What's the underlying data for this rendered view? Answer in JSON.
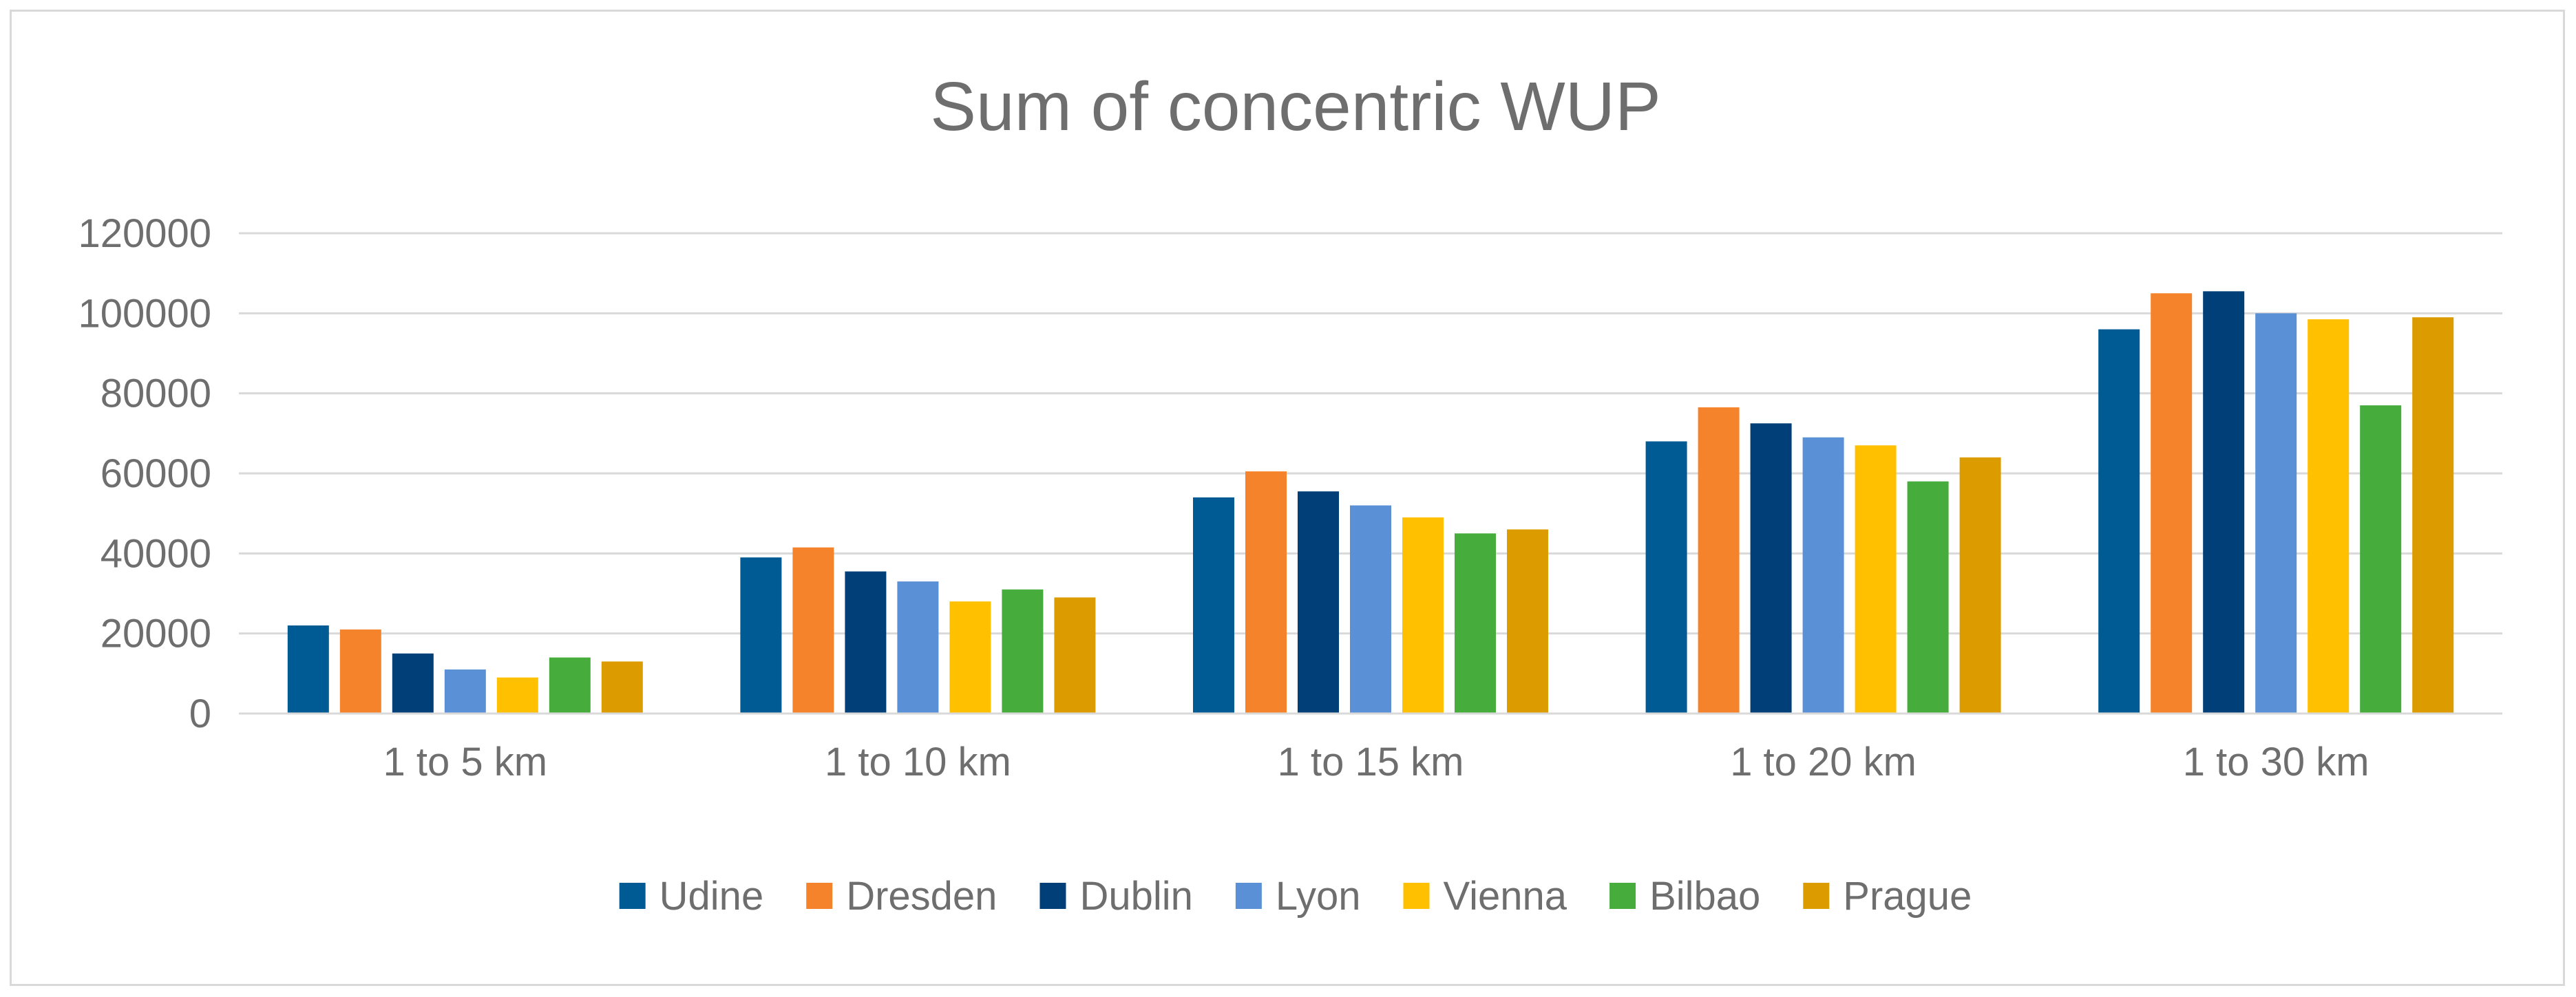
{
  "chart_data": {
    "type": "bar",
    "title": "Sum of concentric WUP",
    "xlabel": "",
    "ylabel": "",
    "ylim": [
      0,
      120000
    ],
    "yticks": [
      0,
      20000,
      40000,
      60000,
      80000,
      100000,
      120000
    ],
    "ytick_labels": [
      "0",
      "20000",
      "40000",
      "60000",
      "80000",
      "100000",
      "120000"
    ],
    "grid": true,
    "legend_position": "bottom",
    "categories": [
      "1 to 5  km",
      "1 to 10 km",
      "1 to 15 km",
      "1 to 20 km",
      "1 to 30 km"
    ],
    "series": [
      {
        "name": "Udine",
        "color": "#005b94",
        "values": [
          22000,
          39000,
          54000,
          68000,
          96000
        ]
      },
      {
        "name": "Dresden",
        "color": "#f5832b",
        "values": [
          21000,
          41500,
          60500,
          76500,
          105000
        ]
      },
      {
        "name": "Dublin",
        "color": "#003f77",
        "values": [
          15000,
          35500,
          55500,
          72500,
          105500
        ]
      },
      {
        "name": "Lyon",
        "color": "#5a91d6",
        "values": [
          11000,
          33000,
          52000,
          69000,
          100000
        ]
      },
      {
        "name": "Vienna",
        "color": "#ffc000",
        "values": [
          9000,
          28000,
          49000,
          67000,
          98500
        ]
      },
      {
        "name": "Bilbao",
        "color": "#46ad3c",
        "values": [
          14000,
          31000,
          45000,
          58000,
          77000
        ]
      },
      {
        "name": "Prague",
        "color": "#dc9c00",
        "values": [
          13000,
          29000,
          46000,
          64000,
          99000
        ]
      }
    ]
  }
}
